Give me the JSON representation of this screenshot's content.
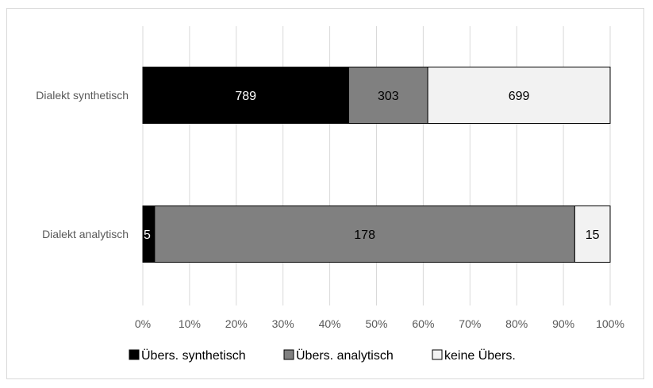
{
  "chart_data": {
    "type": "bar",
    "orientation": "horizontal",
    "stacked": "percent",
    "categories": [
      "Dialekt synthetisch",
      "Dialekt analytisch"
    ],
    "series": [
      {
        "name": "Übers. synthetisch",
        "values": [
          789,
          5
        ],
        "color": "#000000",
        "label_color": "#ffffff"
      },
      {
        "name": "Übers. analytisch",
        "values": [
          303,
          178
        ],
        "color": "#808080",
        "label_color": "#000000"
      },
      {
        "name": "keine Übers.",
        "values": [
          699,
          15
        ],
        "color": "#f2f2f2",
        "label_color": "#000000"
      }
    ],
    "xlim": [
      0,
      100
    ],
    "xticks": [
      "0%",
      "10%",
      "20%",
      "30%",
      "40%",
      "50%",
      "60%",
      "70%",
      "80%",
      "90%",
      "100%"
    ],
    "grid": "vertical",
    "legend_position": "bottom",
    "gridline_color": "#d9d9d9",
    "bar_outline_color": "#000000"
  }
}
